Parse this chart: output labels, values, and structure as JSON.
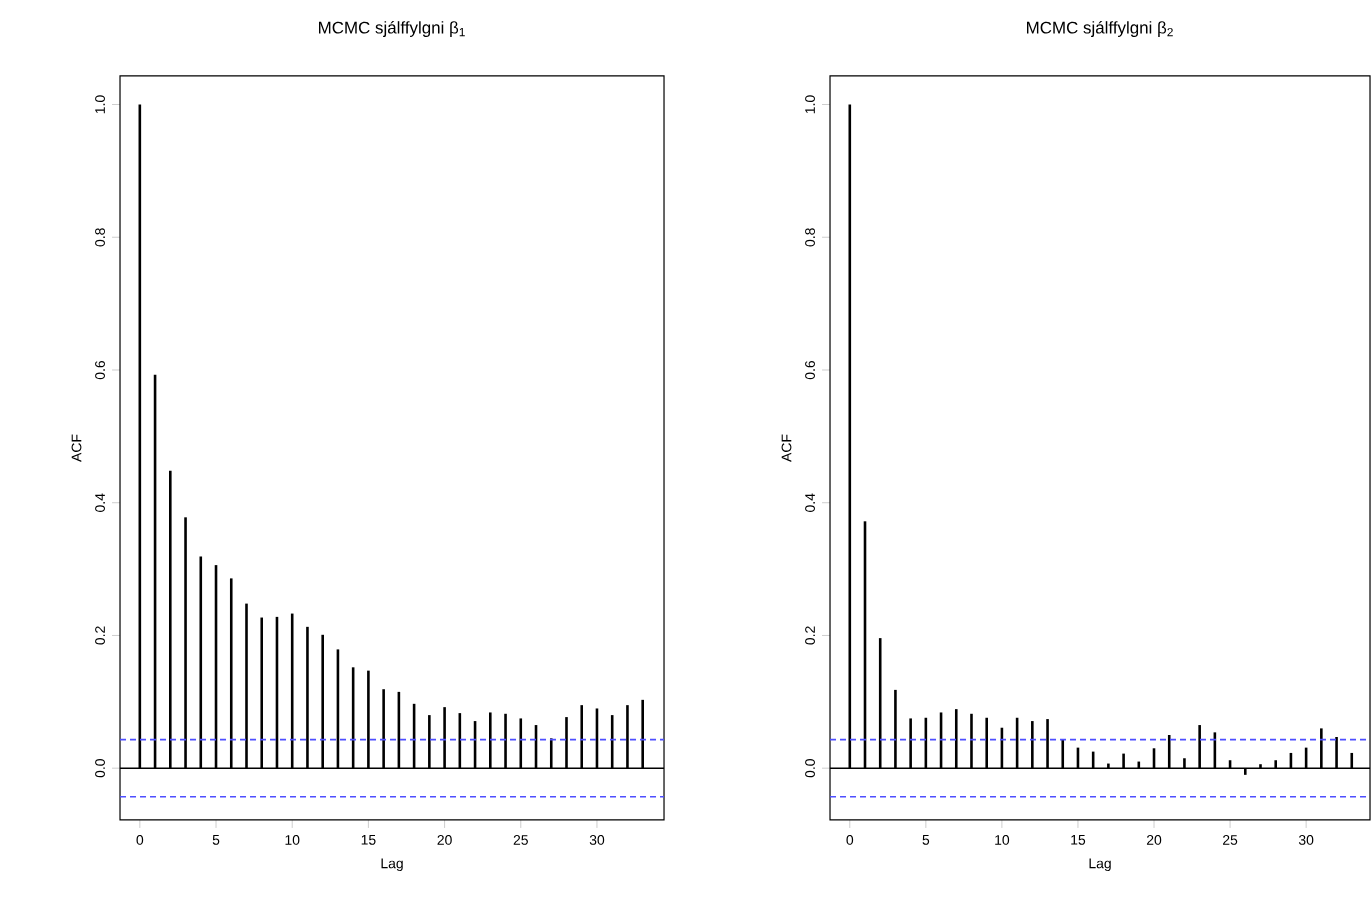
{
  "chart_data": [
    {
      "type": "bar",
      "title": "MCMC sjálffylgni β$_{1}$",
      "xlabel": "Lag",
      "ylabel": "ACF",
      "x": [
        0,
        1,
        2,
        3,
        4,
        5,
        6,
        7,
        8,
        9,
        10,
        11,
        12,
        13,
        14,
        15,
        16,
        17,
        18,
        19,
        20,
        21,
        22,
        23,
        24,
        25,
        26,
        27,
        28,
        29,
        30,
        31,
        32,
        33
      ],
      "series": [
        {
          "color": "#000000",
          "values": [
            1.0,
            0.593,
            0.448,
            0.378,
            0.319,
            0.306,
            0.286,
            0.248,
            0.227,
            0.228,
            0.233,
            0.213,
            0.201,
            0.179,
            0.152,
            0.147,
            0.119,
            0.115,
            0.097,
            0.08,
            0.092,
            0.083,
            0.071,
            0.084,
            0.082,
            0.075,
            0.065,
            0.045,
            0.077,
            0.095,
            0.09,
            0.08,
            0.095,
            0.103
          ]
        }
      ],
      "xlim": [
        -1.3,
        34.4
      ],
      "ylim": [
        -0.078,
        1.043
      ],
      "xticks": [
        0,
        5,
        10,
        15,
        20,
        25,
        30
      ],
      "yticks": [
        {
          "value": 0,
          "label": "0.0"
        },
        {
          "value": 0.2,
          "label": "0.2"
        },
        {
          "value": 0.4,
          "label": "0.4"
        },
        {
          "value": 0.6,
          "label": "0.6"
        },
        {
          "value": 0.8,
          "label": "0.8"
        },
        {
          "value": 1.0,
          "label": "1.0"
        }
      ],
      "ref_lines": [
        {
          "axis": "y",
          "value": 0,
          "color": "#000000",
          "line_style": "solid"
        },
        {
          "axis": "y",
          "value": 0.043,
          "color": "#4f4fff",
          "line_style": "dashed"
        },
        {
          "axis": "y",
          "value": -0.043,
          "color": "#4f4fff",
          "line_style": "dashed"
        }
      ]
    },
    {
      "type": "bar",
      "title": "MCMC sjálffylgni β$_{2}$",
      "xlabel": "Lag",
      "ylabel": "ACF",
      "x": [
        0,
        1,
        2,
        3,
        4,
        5,
        6,
        7,
        8,
        9,
        10,
        11,
        12,
        13,
        14,
        15,
        16,
        17,
        18,
        19,
        20,
        21,
        22,
        23,
        24,
        25,
        26,
        27,
        28,
        29,
        30,
        31,
        32,
        33
      ],
      "series": [
        {
          "color": "#000000",
          "values": [
            1.0,
            0.372,
            0.196,
            0.118,
            0.075,
            0.076,
            0.084,
            0.089,
            0.082,
            0.076,
            0.061,
            0.076,
            0.071,
            0.074,
            0.043,
            0.031,
            0.025,
            0.007,
            0.022,
            0.01,
            0.03,
            0.05,
            0.015,
            0.065,
            0.054,
            0.012,
            -0.01,
            0.006,
            0.012,
            0.023,
            0.031,
            0.06,
            0.047,
            0.023
          ]
        }
      ],
      "xlim": [
        -1.3,
        34.2
      ],
      "ylim": [
        -0.078,
        1.043
      ],
      "xticks": [
        0,
        5,
        10,
        15,
        20,
        25,
        30
      ],
      "yticks": [
        {
          "value": 0,
          "label": "0.0"
        },
        {
          "value": 0.2,
          "label": "0.2"
        },
        {
          "value": 0.4,
          "label": "0.4"
        },
        {
          "value": 0.6,
          "label": "0.6"
        },
        {
          "value": 0.8,
          "label": "0.8"
        },
        {
          "value": 1.0,
          "label": "1.0"
        }
      ],
      "ref_lines": [
        {
          "axis": "y",
          "value": 0,
          "color": "#000000",
          "line_style": "solid"
        },
        {
          "axis": "y",
          "value": 0.043,
          "color": "#4f4fff",
          "line_style": "dashed"
        },
        {
          "axis": "y",
          "value": -0.043,
          "color": "#4f4fff",
          "line_style": "dashed"
        }
      ]
    }
  ]
}
